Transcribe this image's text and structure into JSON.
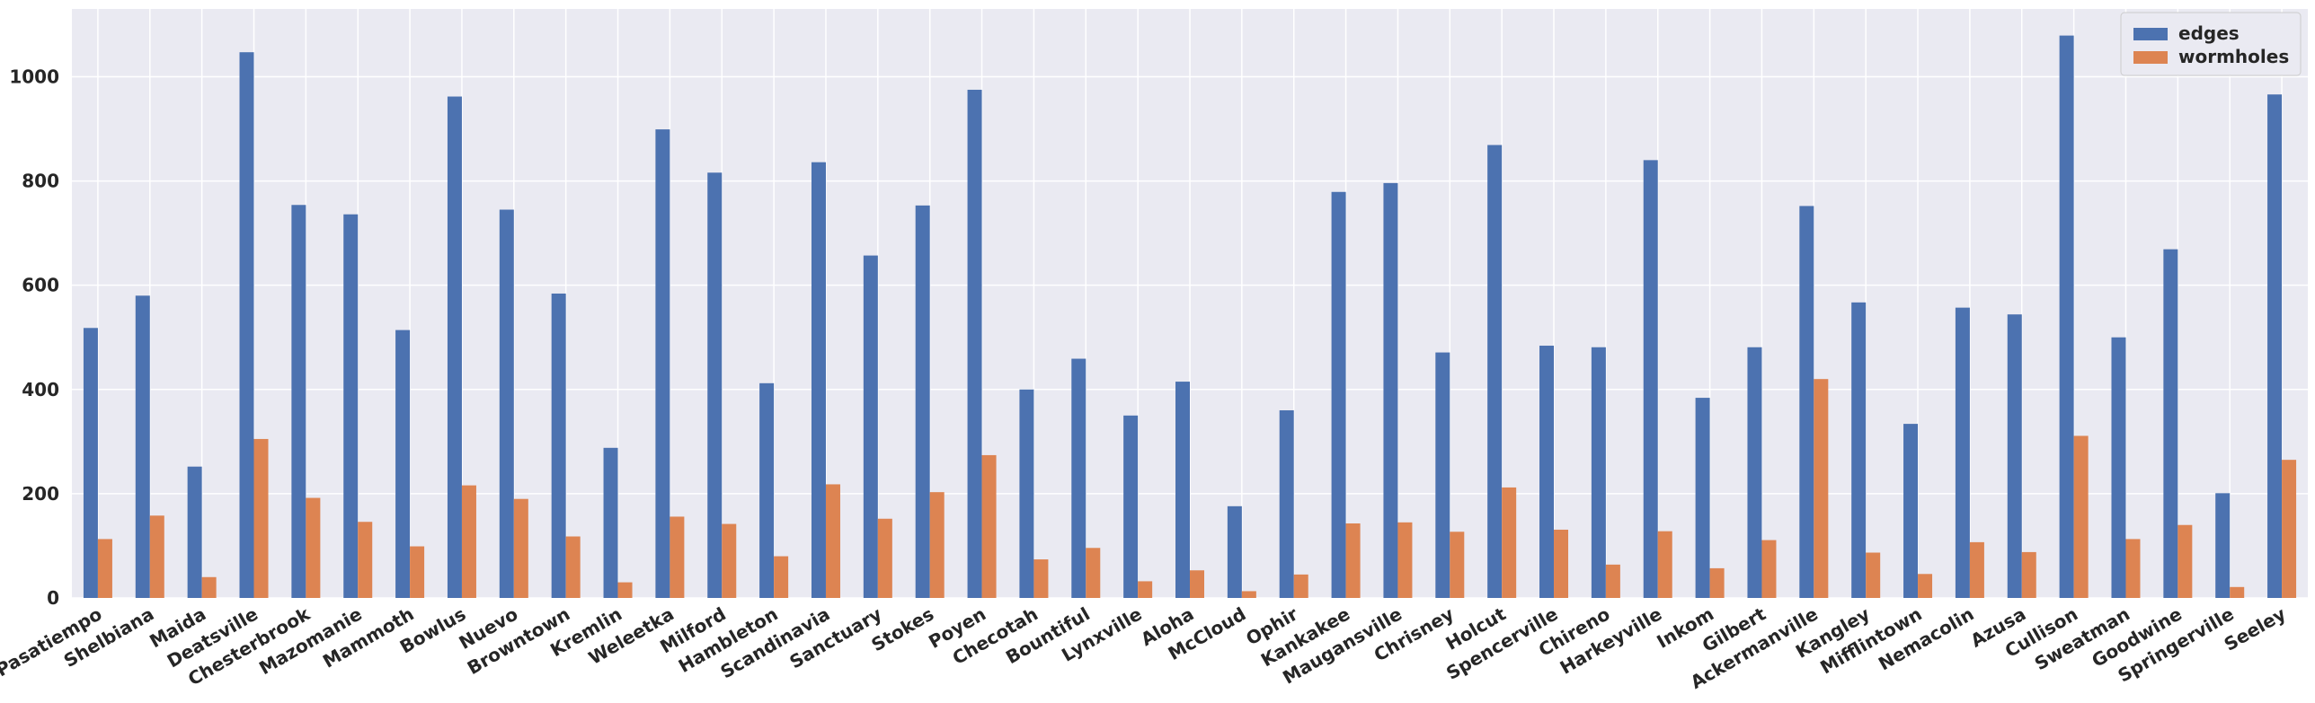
{
  "chart_data": {
    "type": "bar",
    "title": "",
    "xlabel": "",
    "ylabel": "",
    "ylim": [
      0,
      1130
    ],
    "yticks": [
      0,
      200,
      400,
      600,
      800,
      1000
    ],
    "grid": true,
    "legend_position": "top-right",
    "categories": [
      "Pasatiempo",
      "Shelbiana",
      "Maida",
      "Deatsville",
      "Chesterbrook",
      "Mazomanie",
      "Mammoth",
      "Bowlus",
      "Nuevo",
      "Browntown",
      "Kremlin",
      "Weleetka",
      "Milford",
      "Hambleton",
      "Scandinavia",
      "Sanctuary",
      "Stokes",
      "Poyen",
      "Checotah",
      "Bountiful",
      "Lynxville",
      "Aloha",
      "McCloud",
      "Ophir",
      "Kankakee",
      "Maugansville",
      "Chrisney",
      "Holcut",
      "Spencerville",
      "Chireno",
      "Harkeyville",
      "Inkom",
      "Gilbert",
      "Ackermanville",
      "Kangley",
      "Mifflintown",
      "Nemacolin",
      "Azusa",
      "Cullison",
      "Sweatman",
      "Goodwine",
      "Springerville",
      "Seeley"
    ],
    "series": [
      {
        "name": "edges",
        "color": "#4c72b0",
        "values": [
          518,
          580,
          252,
          1047,
          754,
          736,
          514,
          962,
          745,
          584,
          288,
          899,
          816,
          412,
          836,
          657,
          753,
          975,
          400,
          459,
          350,
          415,
          176,
          360,
          779,
          796,
          471,
          869,
          484,
          481,
          840,
          384,
          481,
          752,
          567,
          334,
          557,
          544,
          1079,
          500,
          669,
          201,
          966
        ]
      },
      {
        "name": "wormholes",
        "color": "#dd8452",
        "values": [
          113,
          158,
          40,
          305,
          192,
          146,
          99,
          216,
          190,
          118,
          30,
          156,
          142,
          80,
          218,
          152,
          203,
          274,
          74,
          96,
          32,
          53,
          13,
          45,
          143,
          145,
          127,
          212,
          131,
          64,
          128,
          57,
          111,
          420,
          87,
          46,
          107,
          88,
          311,
          113,
          140,
          21,
          265
        ]
      }
    ]
  }
}
